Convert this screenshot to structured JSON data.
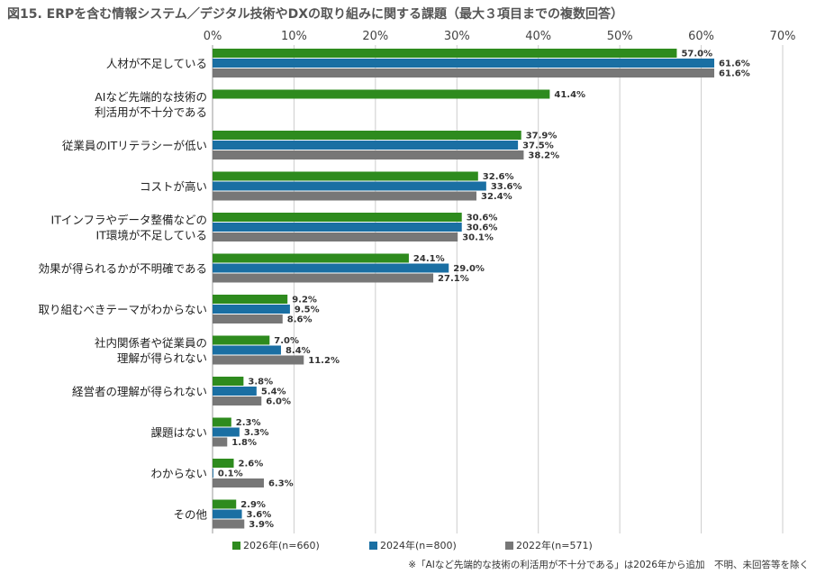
{
  "title": "図15. ERPを含む情報システム／デジタル技術やDXの取り組みに関する課題（最大３項目までの複数回答）",
  "chart_data": {
    "type": "bar",
    "orientation": "horizontal",
    "xlim": [
      0,
      70
    ],
    "xticks": [
      "0%",
      "10%",
      "20%",
      "30%",
      "40%",
      "50%",
      "60%",
      "70%"
    ],
    "categories": [
      [
        "人材が不足している"
      ],
      [
        "AIなど先端的な技術の",
        "利活用が不十分である"
      ],
      [
        "従業員のITリテラシーが低い"
      ],
      [
        "コストが高い"
      ],
      [
        "ITインフラやデータ整備などの",
        "IT環境が不足している"
      ],
      [
        "効果が得られるかが不明確である"
      ],
      [
        "取り組むべきテーマがわからない"
      ],
      [
        "社内関係者や従業員の",
        "理解が得られない"
      ],
      [
        "経営者の理解が得られない"
      ],
      [
        "課題はない"
      ],
      [
        "わからない"
      ],
      [
        "その他"
      ]
    ],
    "series": [
      {
        "name": "2026年(n=660)",
        "color": "#2e8b1e",
        "values": [
          57.0,
          41.4,
          37.9,
          32.6,
          30.6,
          24.1,
          9.2,
          7.0,
          3.8,
          2.3,
          2.6,
          2.9
        ],
        "labels": [
          "57.0%",
          "41.4%",
          "37.9%",
          "32.6%",
          "30.6%",
          "24.1%",
          "9.2%",
          "7.0%",
          "3.8%",
          "2.3%",
          "2.6%",
          "2.9%"
        ]
      },
      {
        "name": "2024年(n=800)",
        "color": "#1a6fa3",
        "values": [
          61.6,
          null,
          37.5,
          33.6,
          30.6,
          29.0,
          9.5,
          8.4,
          5.4,
          3.3,
          0.1,
          3.6
        ],
        "labels": [
          "61.6%",
          null,
          "37.5%",
          "33.6%",
          "30.6%",
          "29.0%",
          "9.5%",
          "8.4%",
          "5.4%",
          "3.3%",
          "0.1%",
          "3.6%"
        ]
      },
      {
        "name": "2022年(n=571)",
        "color": "#777777",
        "values": [
          61.6,
          null,
          38.2,
          32.4,
          30.1,
          27.1,
          8.6,
          11.2,
          6.0,
          1.8,
          6.3,
          3.9
        ],
        "labels": [
          "61.6%",
          null,
          "38.2%",
          "32.4%",
          "30.1%",
          "27.1%",
          "8.6%",
          "11.2%",
          "6.0%",
          "1.8%",
          "6.3%",
          "3.9%"
        ]
      }
    ]
  },
  "note": "※「AIなど先端的な技術の利活用が不十分である」は2026年から追加　不明、未回答等を除く"
}
